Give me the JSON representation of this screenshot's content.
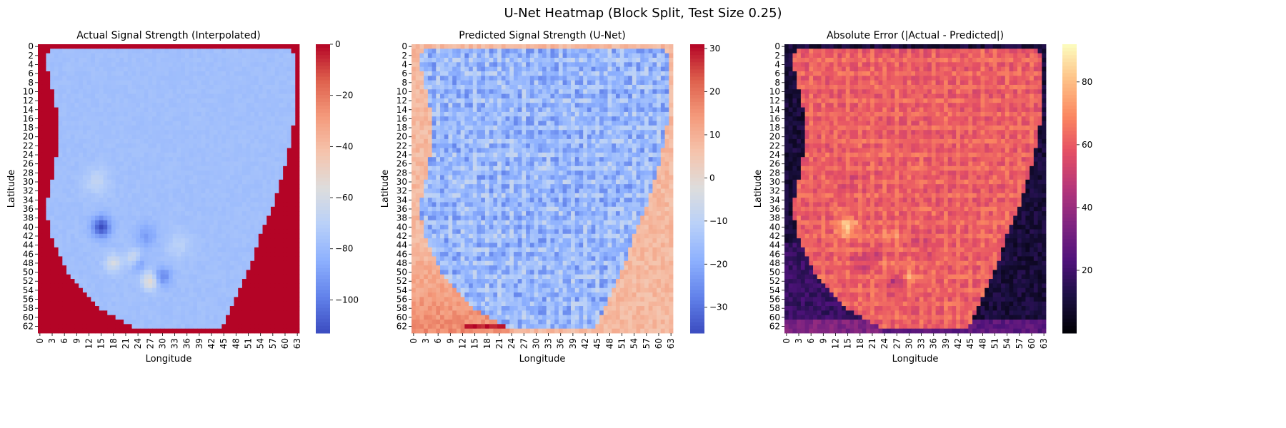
{
  "figure": {
    "suptitle": "U-Net Heatmap (Block Split, Test Size 0.25)"
  },
  "chart_data": [
    {
      "type": "heatmap",
      "title": "Actual Signal Strength (Interpolated)",
      "xlabel": "Longitude",
      "ylabel": "Latitude",
      "grid_size": 64,
      "xticks": [
        "0",
        "3",
        "6",
        "9",
        "12",
        "15",
        "18",
        "21",
        "24",
        "27",
        "30",
        "33",
        "36",
        "39",
        "42",
        "45",
        "48",
        "51",
        "54",
        "57",
        "60",
        "63"
      ],
      "yticks": [
        "0",
        "2",
        "4",
        "6",
        "8",
        "10",
        "12",
        "14",
        "16",
        "18",
        "20",
        "22",
        "24",
        "26",
        "28",
        "30",
        "32",
        "34",
        "36",
        "38",
        "40",
        "42",
        "44",
        "46",
        "48",
        "50",
        "52",
        "54",
        "56",
        "58",
        "60",
        "62"
      ],
      "colormap": "coolwarm",
      "vmin": -113,
      "vmax": 0,
      "colorbar_ticks": [
        "0",
        "−20",
        "−40",
        "−60",
        "−80",
        "−100"
      ],
      "colorbar_values": [
        0,
        -20,
        -40,
        -60,
        -80,
        -100
      ],
      "background_value": 0,
      "region_typical_value": -78
    },
    {
      "type": "heatmap",
      "title": "Predicted Signal Strength (U-Net)",
      "xlabel": "Longitude",
      "ylabel": "Latitude",
      "grid_size": 64,
      "xticks": [
        "0",
        "3",
        "6",
        "9",
        "12",
        "15",
        "18",
        "21",
        "24",
        "27",
        "30",
        "33",
        "36",
        "39",
        "42",
        "45",
        "48",
        "51",
        "54",
        "57",
        "60",
        "63"
      ],
      "yticks": [
        "0",
        "2",
        "4",
        "6",
        "8",
        "10",
        "12",
        "14",
        "16",
        "18",
        "20",
        "22",
        "24",
        "26",
        "28",
        "30",
        "32",
        "34",
        "36",
        "38",
        "40",
        "42",
        "44",
        "46",
        "48",
        "50",
        "52",
        "54",
        "56",
        "58",
        "60",
        "62"
      ],
      "colormap": "coolwarm",
      "vmin": -36,
      "vmax": 31,
      "colorbar_ticks": [
        "30",
        "20",
        "10",
        "0",
        "−10",
        "−20",
        "−30"
      ],
      "colorbar_values": [
        30,
        20,
        10,
        0,
        -10,
        -20,
        -30
      ],
      "background_value": 8,
      "region_typical_value": -20
    },
    {
      "type": "heatmap",
      "title": "Absolute Error (|Actual - Predicted|)",
      "xlabel": "Longitude",
      "ylabel": "Latitude",
      "grid_size": 64,
      "xticks": [
        "0",
        "3",
        "6",
        "9",
        "12",
        "15",
        "18",
        "21",
        "24",
        "27",
        "30",
        "33",
        "36",
        "39",
        "42",
        "45",
        "48",
        "51",
        "54",
        "57",
        "60",
        "63"
      ],
      "yticks": [
        "0",
        "2",
        "4",
        "6",
        "8",
        "10",
        "12",
        "14",
        "16",
        "18",
        "20",
        "22",
        "24",
        "26",
        "28",
        "30",
        "32",
        "34",
        "36",
        "38",
        "40",
        "42",
        "44",
        "46",
        "48",
        "50",
        "52",
        "54",
        "56",
        "58",
        "60",
        "62"
      ],
      "colormap": "magma",
      "vmin": 0,
      "vmax": 92,
      "colorbar_ticks": [
        "80",
        "60",
        "40",
        "20"
      ],
      "colorbar_values": [
        80,
        60,
        40,
        20
      ],
      "background_value": 5,
      "region_typical_value": 58
    }
  ]
}
